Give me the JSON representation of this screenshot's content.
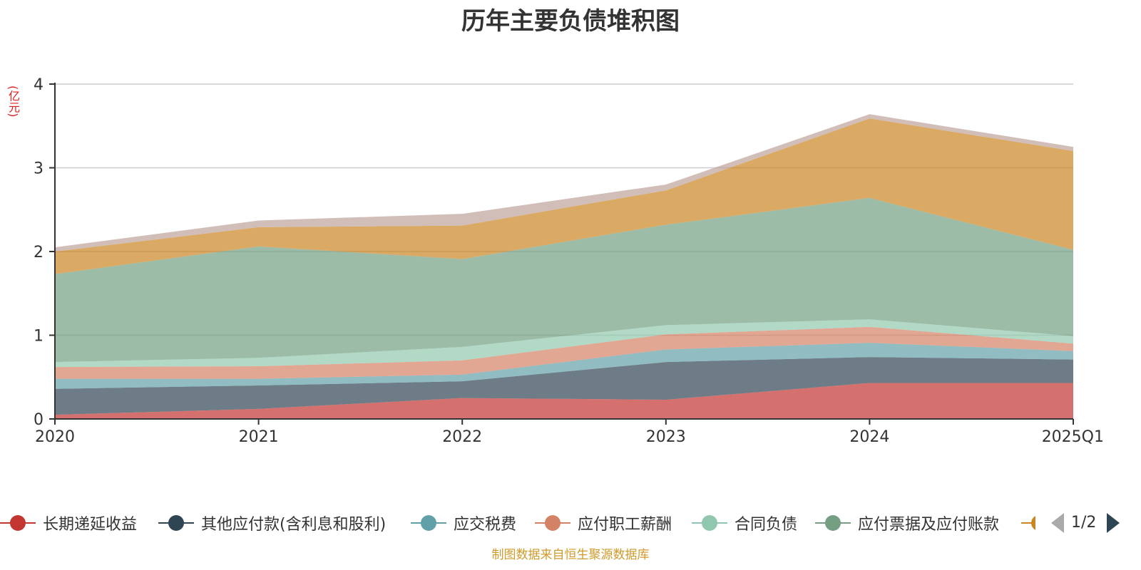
{
  "chart_data": {
    "type": "area",
    "stacked": true,
    "title": "历年主要负债堆积图",
    "unit_label": "(亿元)",
    "categories": [
      "2020",
      "2021",
      "2022",
      "2023",
      "2024",
      "2025Q1"
    ],
    "ylim": [
      0,
      4
    ],
    "yticks": [
      "0",
      "1",
      "2",
      "3",
      "4"
    ],
    "grid": true,
    "legend_position": "bottom",
    "series": [
      {
        "name": "长期递延收益",
        "color": "#c23531",
        "values": [
          0.05,
          0.12,
          0.25,
          0.23,
          0.43,
          0.43
        ]
      },
      {
        "name": "其他应付款(含利息和股利)",
        "color": "#2f4554",
        "values": [
          0.31,
          0.28,
          0.2,
          0.45,
          0.31,
          0.28
        ]
      },
      {
        "name": "应交税费",
        "color": "#61a0a8",
        "values": [
          0.12,
          0.08,
          0.08,
          0.15,
          0.17,
          0.1
        ]
      },
      {
        "name": "应付职工薪酬",
        "color": "#d48265",
        "values": [
          0.14,
          0.15,
          0.17,
          0.18,
          0.19,
          0.09
        ]
      },
      {
        "name": "合同负债",
        "color": "#91c7ae",
        "values": [
          0.06,
          0.1,
          0.16,
          0.11,
          0.09,
          0.09
        ]
      },
      {
        "name": "应付票据及应付账款",
        "color": "#749f83",
        "values": [
          1.05,
          1.33,
          1.05,
          1.2,
          1.45,
          1.03
        ]
      },
      {
        "name": "",
        "color": "#ca8622",
        "values": [
          0.27,
          0.23,
          0.4,
          0.41,
          0.95,
          1.18
        ]
      },
      {
        "name": "",
        "color": "#bda29a",
        "values": [
          0.05,
          0.08,
          0.14,
          0.07,
          0.05,
          0.05
        ]
      }
    ]
  },
  "legend": {
    "pager_text": "1/2"
  },
  "footer": {
    "source_note": "制图数据来自恒生聚源数据库"
  }
}
